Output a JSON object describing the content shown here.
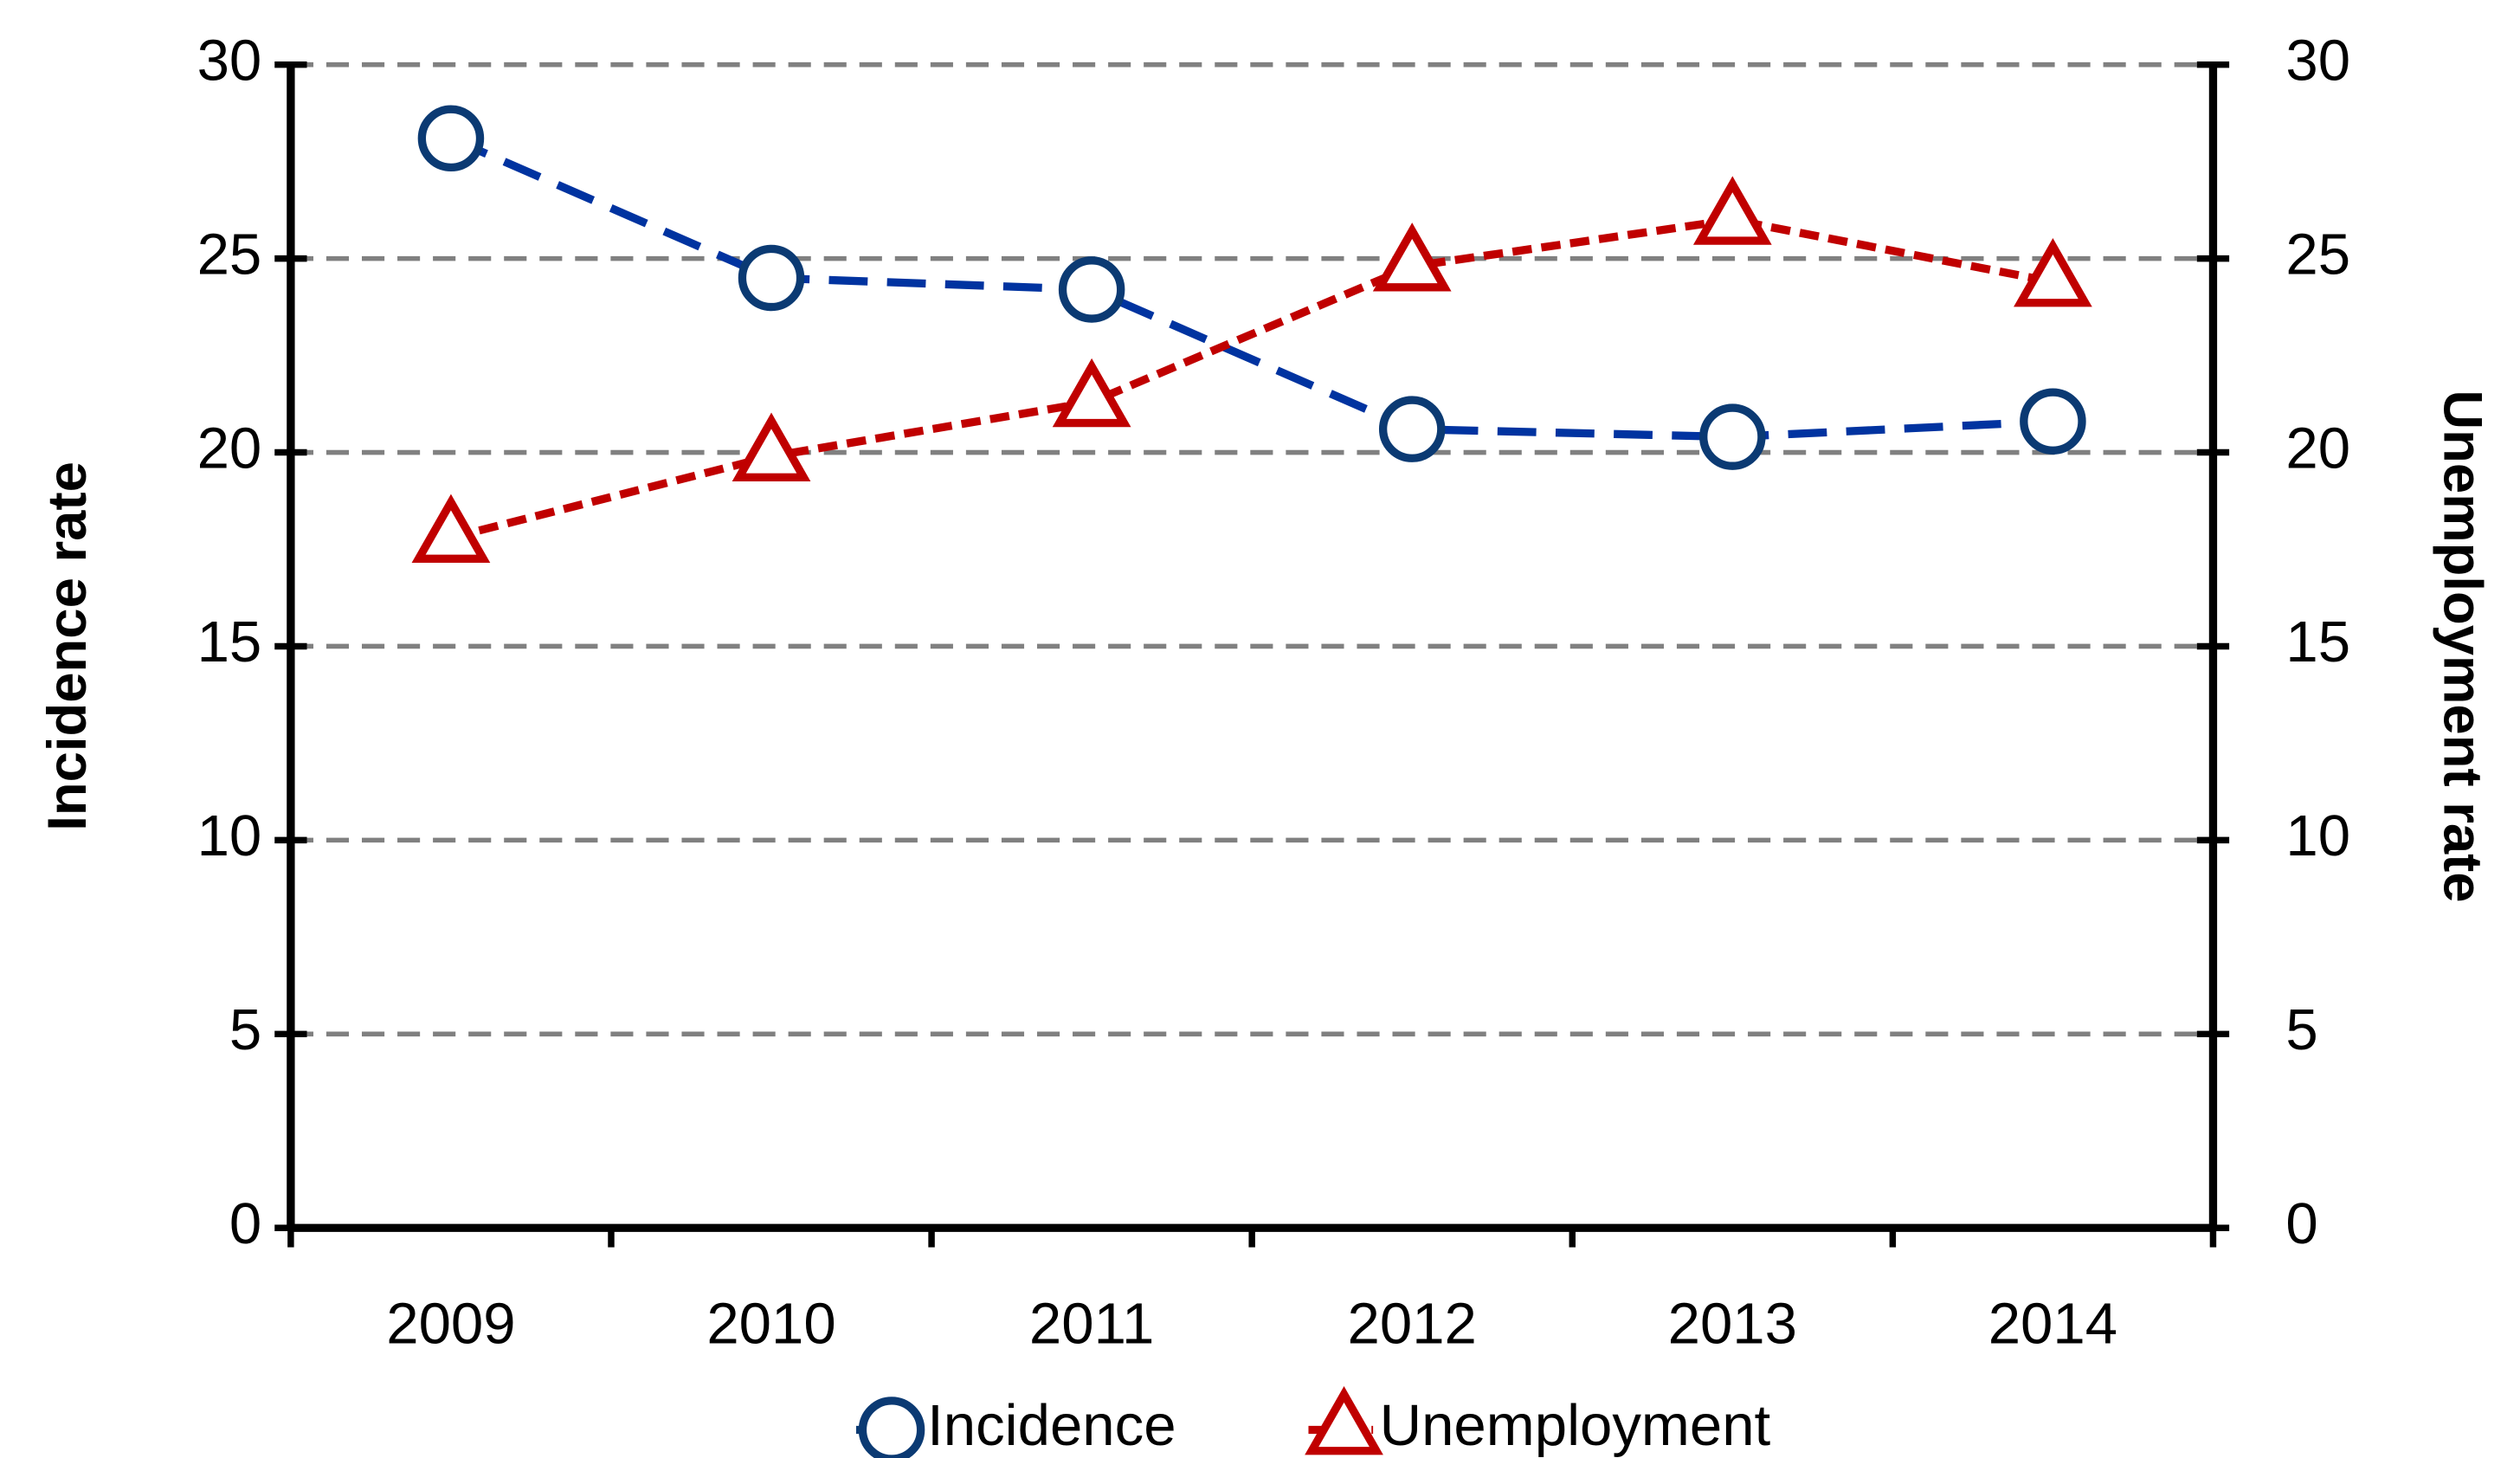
{
  "chart_data": {
    "type": "line",
    "categories": [
      "2009",
      "2010",
      "2011",
      "2012",
      "2013",
      "2014"
    ],
    "series": [
      {
        "name": "Incidence",
        "color": "#0b3a73",
        "marker": "circle",
        "values": [
          28.1,
          24.5,
          24.2,
          20.6,
          20.4,
          20.8
        ]
      },
      {
        "name": "Unemployment",
        "color": "#c00000",
        "marker": "triangle",
        "axis": "y2",
        "values": [
          17.8,
          19.9,
          21.3,
          24.8,
          26.0,
          24.4
        ]
      }
    ],
    "ylabel": "Incidence rate",
    "y2label": "Unemployment rate",
    "ylim": [
      0,
      30
    ],
    "yticks": [
      0,
      5,
      10,
      15,
      20,
      25,
      30
    ],
    "y2lim": [
      0,
      30
    ],
    "y2ticks": [
      0,
      5,
      10,
      15,
      20,
      25,
      30
    ],
    "grid": true,
    "legend": "bottom"
  }
}
